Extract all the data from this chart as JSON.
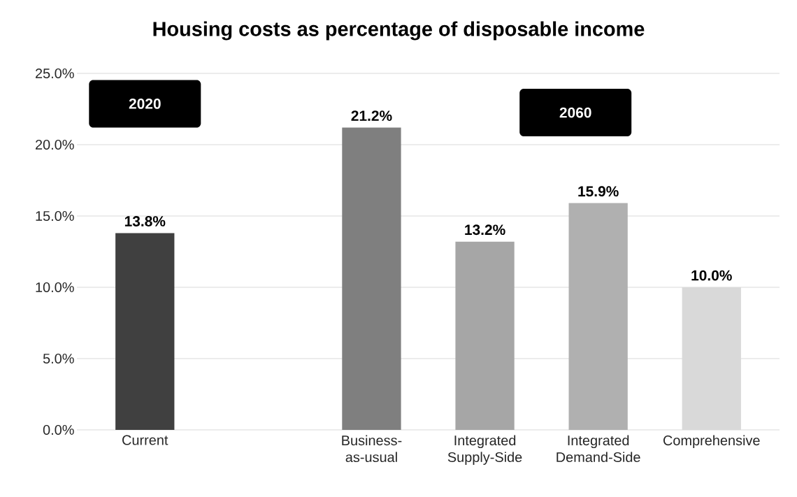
{
  "chart_data": {
    "type": "bar",
    "title": "Housing costs as percentage of disposable income",
    "categories": [
      "Current",
      null,
      "Business-as-usual",
      "Integrated Supply-Side",
      "Integrated Demand-Side",
      "Comprehensive"
    ],
    "values": [
      13.8,
      null,
      21.2,
      13.2,
      15.9,
      10.0
    ],
    "colors": [
      "#404040",
      null,
      "#7f7f7f",
      "#a6a6a6",
      "#b0b0b0",
      "#d9d9d9"
    ],
    "value_labels": [
      "13.8%",
      null,
      "21.2%",
      "13.2%",
      "15.9%",
      "10.0%"
    ],
    "ylim": [
      0,
      25
    ],
    "yticks": [
      {
        "value": 0,
        "label": "0.0%"
      },
      {
        "value": 5,
        "label": "5.0%"
      },
      {
        "value": 10,
        "label": "10.0%"
      },
      {
        "value": 15,
        "label": "15.0%"
      },
      {
        "value": 20,
        "label": "20.0%"
      },
      {
        "value": 25,
        "label": "25.0%"
      }
    ],
    "grid": "y",
    "annotations": [
      "2020",
      "2060"
    ]
  }
}
